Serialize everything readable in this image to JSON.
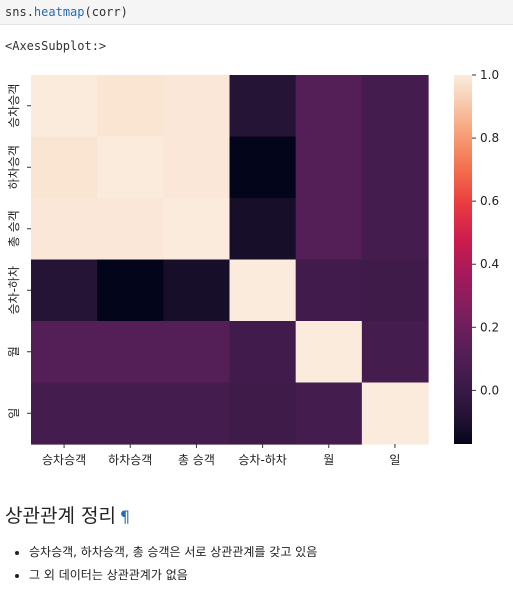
{
  "code_cell": {
    "object": "sns",
    "method": "heatmap",
    "args": "(corr)"
  },
  "output_text": "<AxesSubplot:>",
  "chart_data": {
    "type": "heatmap",
    "title": "",
    "xlabel": "",
    "ylabel": "",
    "x_categories": [
      "승차승객",
      "하차승객",
      "총 승객",
      "승차-하차",
      "월",
      "일"
    ],
    "y_categories": [
      "승차승객",
      "하차승객",
      "총 승객",
      "승차-하차",
      "월",
      "일"
    ],
    "values": [
      [
        1.0,
        0.98,
        0.99,
        -0.07,
        0.12,
        0.05
      ],
      [
        0.98,
        1.0,
        0.99,
        -0.17,
        0.12,
        0.05
      ],
      [
        0.99,
        0.99,
        1.0,
        -0.12,
        0.12,
        0.05
      ],
      [
        -0.07,
        -0.17,
        -0.12,
        1.0,
        0.04,
        0.03
      ],
      [
        0.12,
        0.12,
        0.12,
        0.04,
        1.0,
        0.05
      ],
      [
        0.05,
        0.05,
        0.05,
        0.03,
        0.05,
        1.0
      ]
    ],
    "colorbar": {
      "ticks": [
        0.0,
        0.2,
        0.4,
        0.6,
        0.8,
        1.0
      ],
      "labels": [
        "0.0",
        "0.2",
        "0.4",
        "0.6",
        "0.8",
        "1.0"
      ],
      "vmin": -0.17,
      "vmax": 1.0
    },
    "colormap": "rocket"
  },
  "markdown": {
    "heading": "상관관계 정리",
    "anchor": "¶",
    "bullets": [
      "승차승객, 하차승객, 총 승객은 서로 상관관계를 갖고 있음",
      "그 외 데이터는 상관관계가 없음"
    ]
  }
}
